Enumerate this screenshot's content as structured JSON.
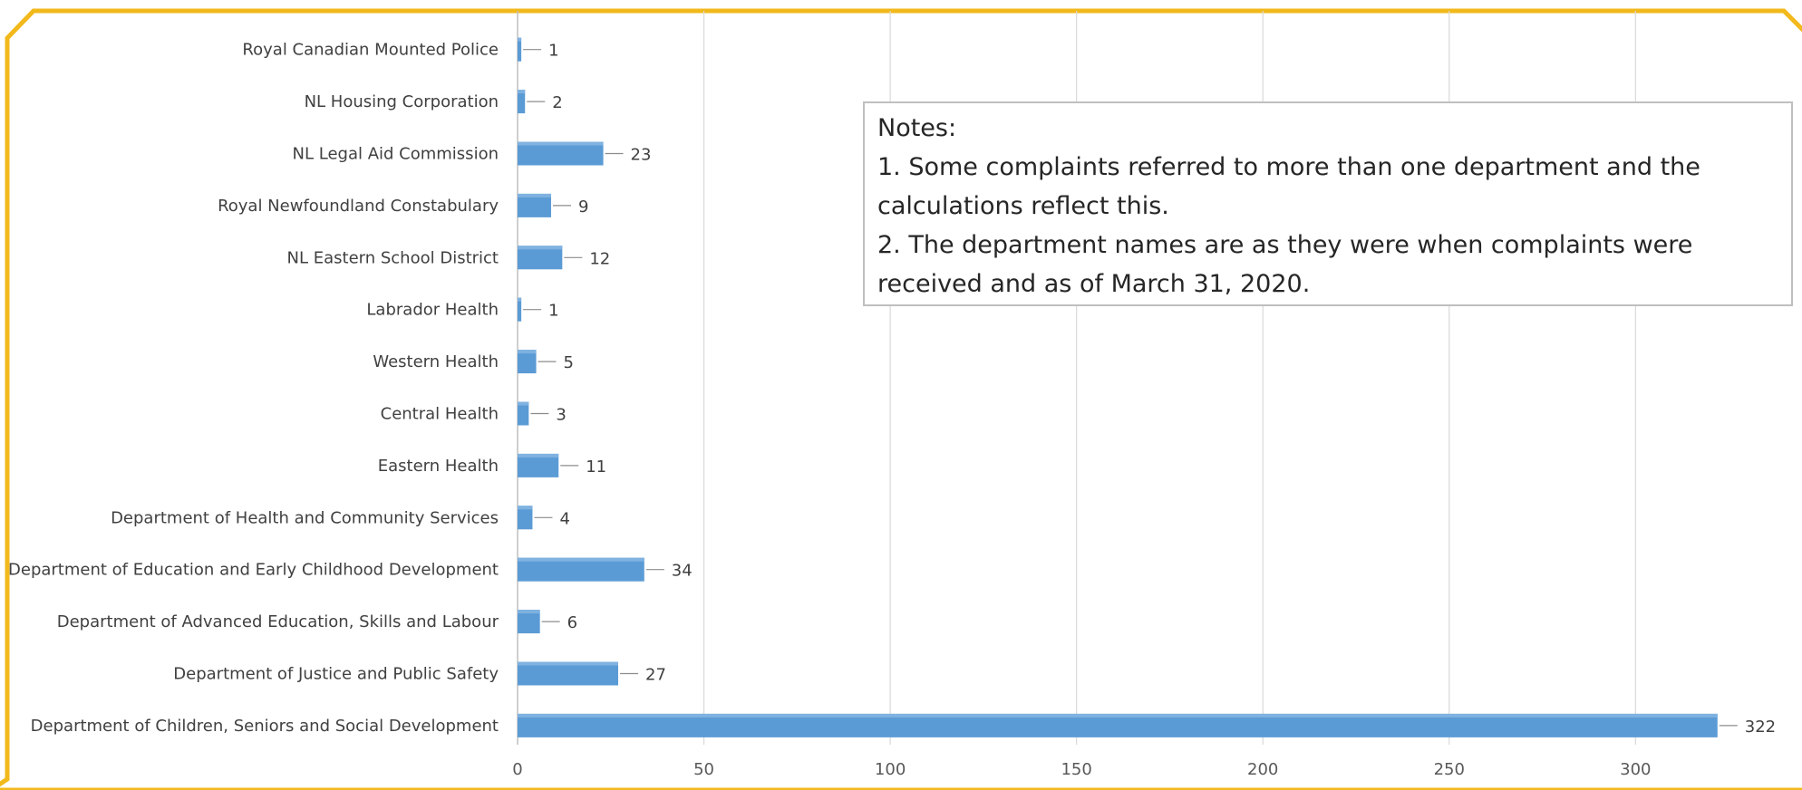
{
  "colors": {
    "frame": "#f2b91c",
    "bar": "#5b9bd5",
    "grid": "#d9d9d9",
    "axis": "#bfbfbf"
  },
  "notes": {
    "heading": "Notes:",
    "line1": "1. Some complaints referred to more than one department and the",
    "line2": "calculations reflect this.",
    "line3": "2. The department names are as they were when complaints were",
    "line4": "received and as of March 31, 2020."
  },
  "chart_data": {
    "type": "bar",
    "orientation": "horizontal",
    "categories": [
      "Royal Canadian Mounted Police",
      "NL Housing Corporation",
      "NL Legal Aid Commission",
      "Royal Newfoundland Constabulary",
      "NL Eastern School District",
      "Labrador Health",
      "Western Health",
      "Central Health",
      "Eastern Health",
      "Department of Health and Community Services",
      "Department of Education and Early Childhood Development",
      "Department of Advanced Education, Skills and Labour",
      "Department of Justice and Public Safety",
      "Department of Children, Seniors and Social Development"
    ],
    "values": [
      1,
      2,
      23,
      9,
      12,
      1,
      5,
      3,
      11,
      4,
      34,
      6,
      27,
      322
    ],
    "xticks": [
      0,
      50,
      100,
      150,
      200,
      250,
      300
    ],
    "xlim": [
      0,
      333
    ],
    "grid": true,
    "legend": "none"
  }
}
